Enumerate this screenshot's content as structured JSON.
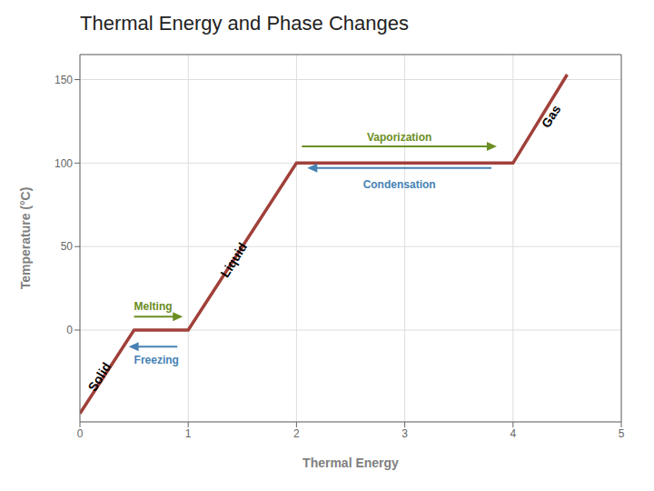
{
  "chart_data": {
    "type": "line",
    "title": "Thermal Energy and Phase Changes",
    "xlabel": "Thermal Energy",
    "ylabel": "Temperature (°C)",
    "x": [
      0.0,
      0.5,
      0.5,
      1.0,
      2.0,
      4.0,
      4.5
    ],
    "values": [
      -50,
      0,
      0,
      0,
      100,
      100,
      153
    ],
    "color": "#a0403a",
    "xlim": [
      0,
      5
    ],
    "ylim": [
      -55,
      165
    ],
    "xticks": [
      0,
      1,
      2,
      3,
      4,
      5
    ],
    "yticks": [
      0,
      50,
      100,
      150
    ],
    "grid": true,
    "annotations": [
      {
        "text": "Solid",
        "x": 0.18,
        "y": -28
      },
      {
        "text": "Liquid",
        "x": 1.42,
        "y": 42
      },
      {
        "text": "Gas",
        "x": 4.35,
        "y": 128
      }
    ],
    "arrows": [
      {
        "text": "Vaporization",
        "x_start": 2.05,
        "x_end": 3.85,
        "y": 110,
        "color": "#6b8e23",
        "text_x": 2.95,
        "text_y": 113
      },
      {
        "text": "Condensation",
        "x_start": 3.8,
        "x_end": 2.1,
        "y": 97,
        "color": "#4682b4",
        "text_x": 2.95,
        "text_y": 85
      },
      {
        "text": "Melting",
        "x_start": 0.5,
        "x_end": 0.95,
        "y": 8,
        "color": "#6b8e23",
        "text_x": 0.5,
        "text_y": 12
      },
      {
        "text": "Freezing",
        "x_start": 0.9,
        "x_end": 0.45,
        "y": -10,
        "color": "#4682b4",
        "text_x": 0.5,
        "text_y": -20
      }
    ]
  }
}
